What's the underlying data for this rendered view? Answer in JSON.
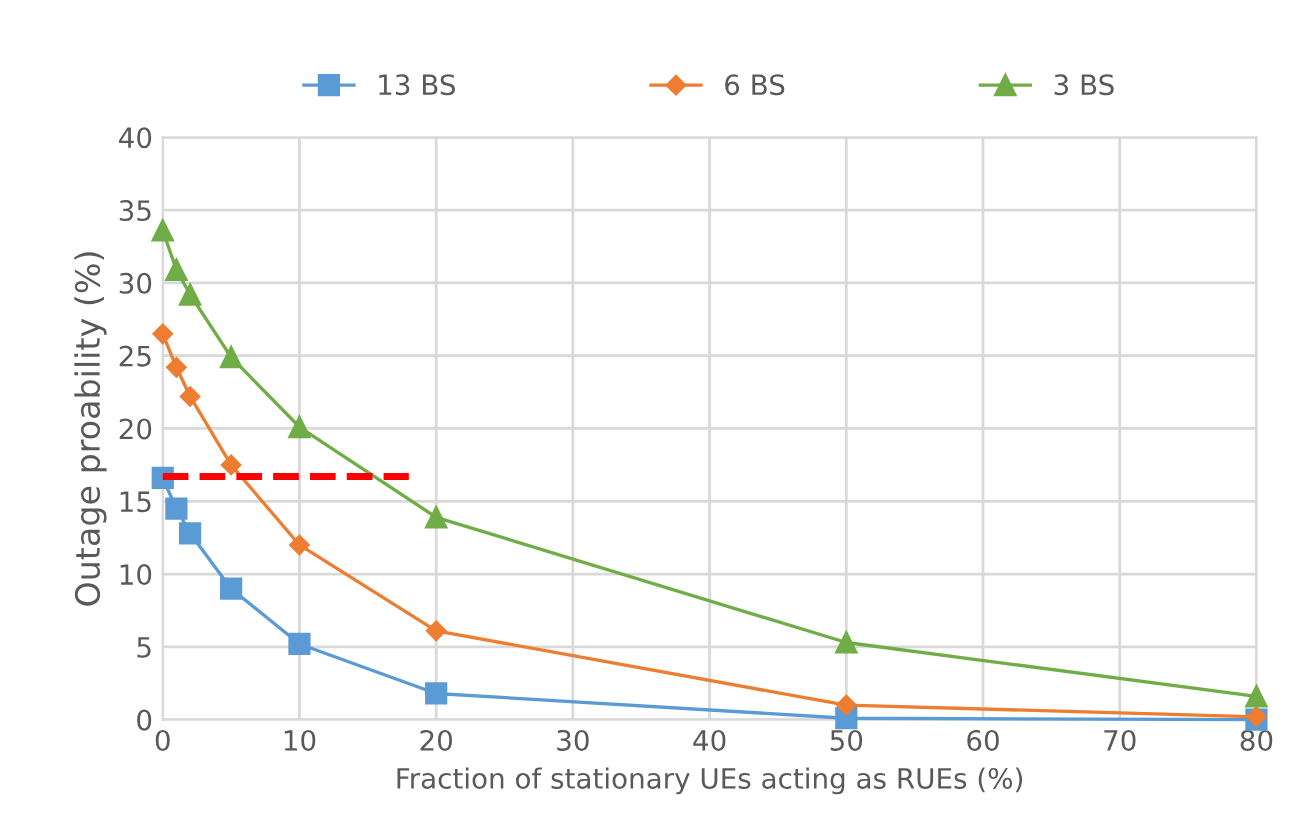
{
  "chart_data": {
    "type": "line",
    "xlabel": "Fraction of stationary UEs acting as RUEs (%)",
    "ylabel": "Outage proability (%)",
    "x": [
      0,
      1,
      2,
      5,
      10,
      20,
      50,
      80
    ],
    "series": [
      {
        "name": "13 BS",
        "color": "#5b9bd5",
        "marker": "square",
        "values": [
          16.6,
          14.5,
          12.8,
          9.0,
          5.2,
          1.8,
          0.1,
          0
        ]
      },
      {
        "name": "6 BS",
        "color": "#ed7d31",
        "marker": "diamond",
        "values": [
          26.5,
          24.2,
          22.2,
          17.5,
          12.0,
          6.1,
          1.0,
          0.2
        ]
      },
      {
        "name": "3 BS",
        "color": "#70ad47",
        "marker": "triangle",
        "values": [
          33.6,
          30.9,
          29.2,
          24.9,
          20.1,
          13.9,
          5.3,
          1.6
        ]
      },
      {
        "type": "line",
        "x": [
          0,
          18
        ],
        "values": [
          16.7,
          16.7
        ],
        "color": "#ff0000",
        "line_style": "dashed",
        "marker": "none"
      }
    ],
    "xlim": [
      0,
      80
    ],
    "xticks": [
      0,
      10,
      20,
      30,
      40,
      50,
      60,
      70,
      80
    ],
    "ylim": [
      0,
      40
    ],
    "yticks": [
      0,
      5,
      10,
      15,
      20,
      25,
      30,
      35,
      40
    ],
    "grid": true,
    "legend": "top"
  }
}
